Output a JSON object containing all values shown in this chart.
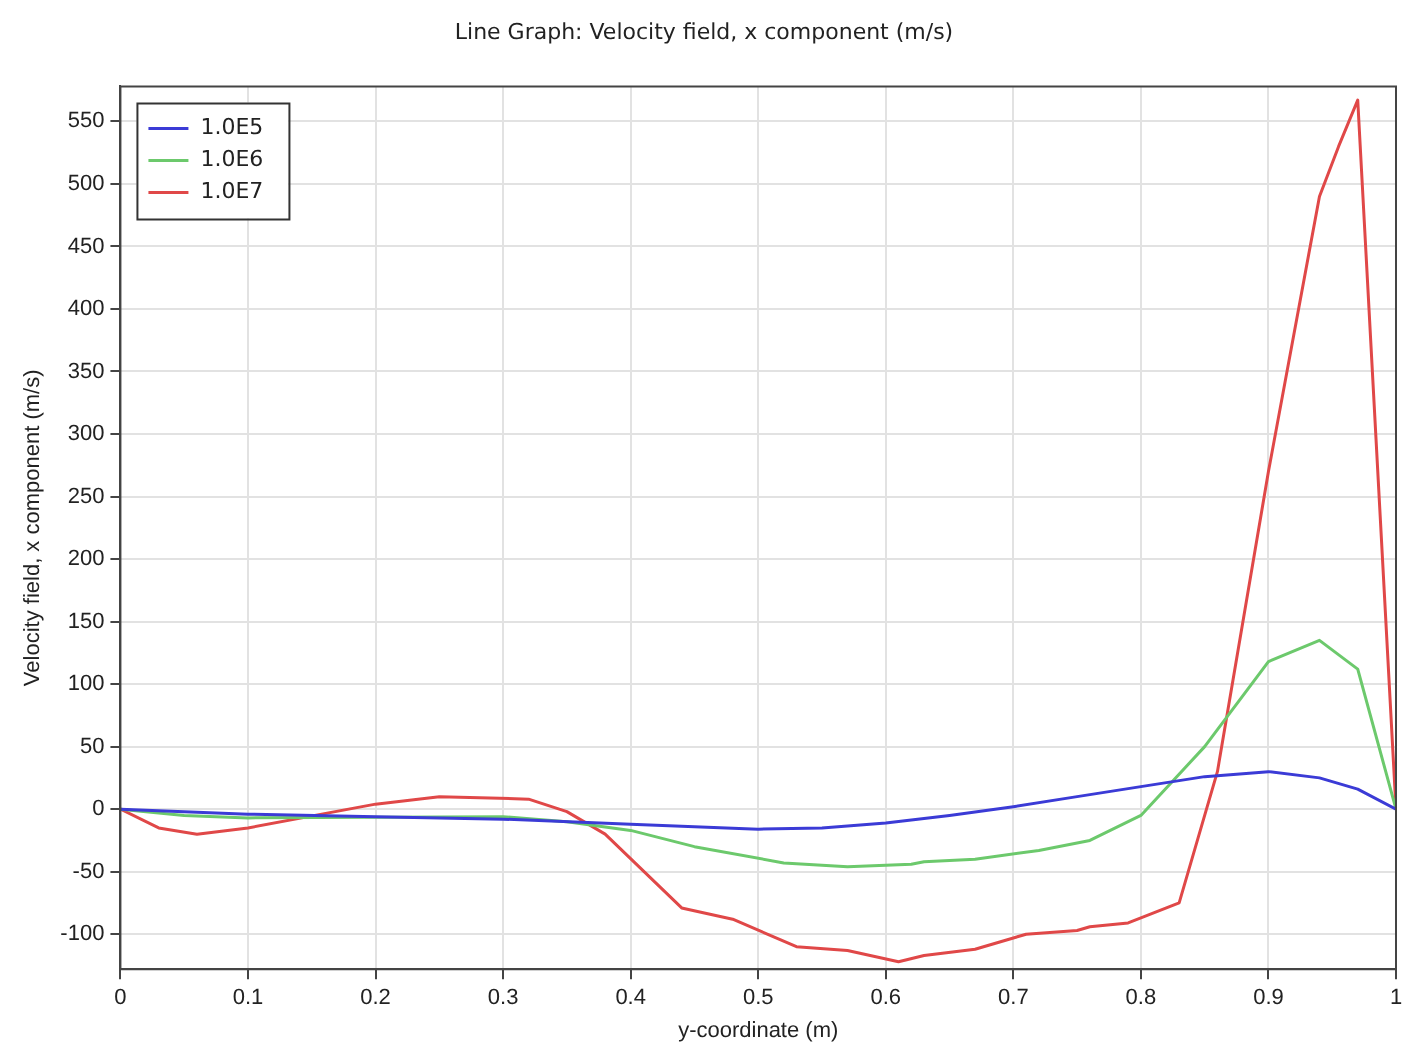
{
  "chart_data": {
    "type": "line",
    "title": "Line Graph: Velocity field, x component (m/s)",
    "xlabel": "y-coordinate (m)",
    "ylabel": "Velocity field, x component (m/s)",
    "xlim": [
      0,
      1
    ],
    "xticks": [
      0,
      0.1,
      0.2,
      0.3,
      0.4,
      0.5,
      0.6,
      0.7,
      0.8,
      0.9,
      1
    ],
    "ylim": [
      -128,
      578
    ],
    "yticks": [
      -100,
      -50,
      0,
      50,
      100,
      150,
      200,
      250,
      300,
      350,
      400,
      450,
      500,
      550
    ],
    "grid": true,
    "legend": "top left",
    "marker": "none",
    "line_style": "solid",
    "series": [
      {
        "name": "1.0E5",
        "color": "#3b3bd6",
        "x": [
          0,
          0.1,
          0.2,
          0.3,
          0.4,
          0.5,
          0.55,
          0.6,
          0.65,
          0.7,
          0.75,
          0.8,
          0.85,
          0.9,
          0.94,
          0.97,
          1
        ],
        "values": [
          0,
          -4,
          -6,
          -8,
          -12,
          -16,
          -15,
          -11,
          -5,
          2,
          10,
          18,
          26,
          30,
          25,
          16,
          0
        ]
      },
      {
        "name": "1.0E6",
        "color": "#6cc96c",
        "x": [
          0,
          0.05,
          0.1,
          0.3,
          0.35,
          0.4,
          0.45,
          0.52,
          0.57,
          0.62,
          0.63,
          0.67,
          0.72,
          0.76,
          0.8,
          0.85,
          0.9,
          0.94,
          0.97,
          1
        ],
        "values": [
          0,
          -5,
          -7,
          -6,
          -10,
          -17,
          -30,
          -43,
          -46,
          -44,
          -42,
          -40,
          -33,
          -25,
          -5,
          50,
          118,
          135,
          112,
          0
        ]
      },
      {
        "name": "1.0E7",
        "color": "#e04848",
        "x": [
          0,
          0.03,
          0.06,
          0.1,
          0.2,
          0.25,
          0.32,
          0.35,
          0.38,
          0.44,
          0.48,
          0.53,
          0.57,
          0.61,
          0.63,
          0.67,
          0.71,
          0.75,
          0.76,
          0.79,
          0.83,
          0.86,
          0.9,
          0.94,
          0.955,
          0.97,
          1
        ],
        "values": [
          0,
          -15,
          -20,
          -15,
          4,
          10,
          8,
          -2,
          -20,
          -79,
          -88,
          -110,
          -113,
          -122,
          -117,
          -112,
          -100,
          -97,
          -94,
          -91,
          -75,
          30,
          270,
          490,
          530,
          567,
          0
        ]
      }
    ]
  }
}
